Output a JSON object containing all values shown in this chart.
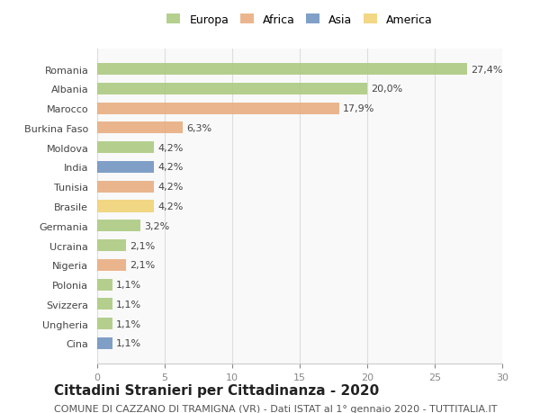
{
  "countries": [
    "Romania",
    "Albania",
    "Marocco",
    "Burkina Faso",
    "Moldova",
    "India",
    "Tunisia",
    "Brasile",
    "Germania",
    "Ucraina",
    "Nigeria",
    "Polonia",
    "Svizzera",
    "Ungheria",
    "Cina"
  ],
  "values": [
    27.4,
    20.0,
    17.9,
    6.3,
    4.2,
    4.2,
    4.2,
    4.2,
    3.2,
    2.1,
    2.1,
    1.1,
    1.1,
    1.1,
    1.1
  ],
  "labels": [
    "27,4%",
    "20,0%",
    "17,9%",
    "6,3%",
    "4,2%",
    "4,2%",
    "4,2%",
    "4,2%",
    "3,2%",
    "2,1%",
    "2,1%",
    "1,1%",
    "1,1%",
    "1,1%",
    "1,1%"
  ],
  "continents": [
    "Europa",
    "Europa",
    "Africa",
    "Africa",
    "Europa",
    "Asia",
    "Africa",
    "America",
    "Europa",
    "Europa",
    "Africa",
    "Europa",
    "Europa",
    "Europa",
    "Asia"
  ],
  "colors": {
    "Europa": "#a8c87a",
    "Africa": "#e8a97a",
    "Asia": "#6a8fbf",
    "America": "#f0d070"
  },
  "legend_colors": {
    "Europa": "#a8c87a",
    "Africa": "#e8a97a",
    "Asia": "#6a8fbf",
    "America": "#f0d070"
  },
  "xlim": [
    0,
    30
  ],
  "xticks": [
    0,
    5,
    10,
    15,
    20,
    25,
    30
  ],
  "grid_color": "#dddddd",
  "background_color": "#f9f9f9",
  "bar_background": "#ffffff",
  "title": "Cittadini Stranieri per Cittadinanza - 2020",
  "subtitle": "COMUNE DI CAZZANO DI TRAMIGNA (VR) - Dati ISTAT al 1° gennaio 2020 - TUTTITALIA.IT",
  "title_fontsize": 11,
  "subtitle_fontsize": 8,
  "label_fontsize": 8,
  "tick_fontsize": 8,
  "legend_order": [
    "Europa",
    "Africa",
    "Asia",
    "America"
  ]
}
